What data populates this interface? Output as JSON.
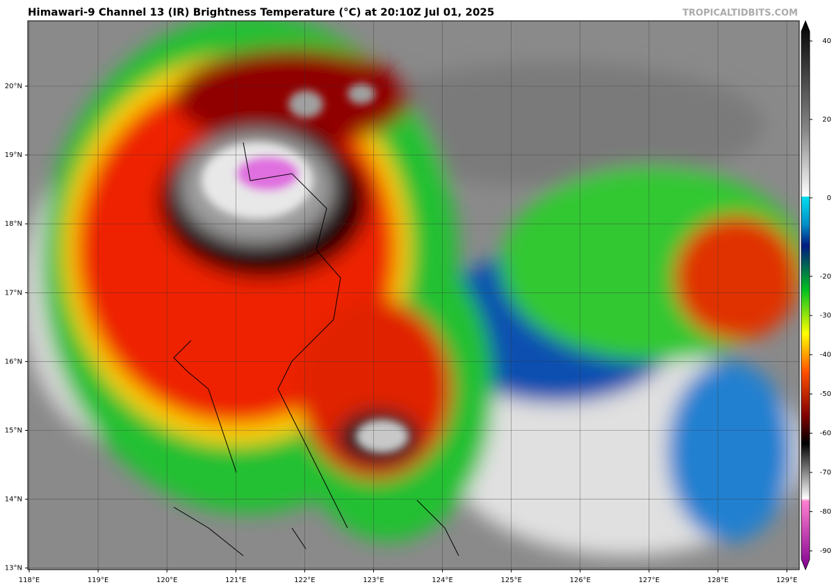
{
  "header": {
    "title": "Himawari-9 Channel 13 (IR) Brightness Temperature (°C) at 20:10Z Jul 01, 2025",
    "watermark": "TROPICALTIDBITS.COM"
  },
  "map": {
    "lat_labels": [
      "20°N",
      "19°N",
      "18°N",
      "17°N",
      "16°N",
      "15°N",
      "14°N",
      "13°N"
    ],
    "lon_labels": [
      "118°E",
      "119°E",
      "120°E",
      "121°E",
      "122°E",
      "123°E",
      "124°E",
      "125°E",
      "126°E",
      "127°E",
      "128°E",
      "129°E"
    ]
  },
  "colorbar": {
    "ticks": [
      40,
      20,
      0,
      -20,
      -30,
      -40,
      -50,
      -60,
      -70,
      -80,
      -90
    ]
  }
}
